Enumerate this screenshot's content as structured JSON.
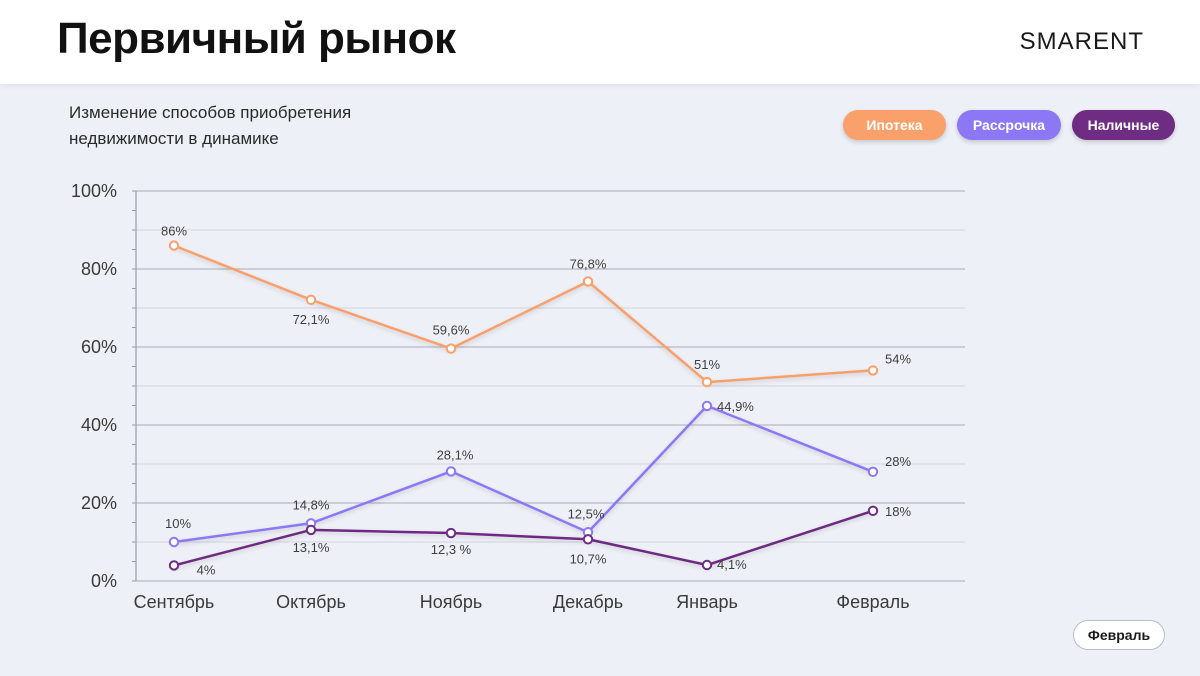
{
  "header": {
    "title": "Первичный рынок",
    "brand": "SMARENT"
  },
  "subtitle": "Изменение способов приобретения недвижимости в динамике",
  "month_button": "Февраль",
  "chart_data": {
    "type": "line",
    "categories": [
      "Сентябрь",
      "Октябрь",
      "Ноябрь",
      "Декабрь",
      "Январь",
      "Февраль"
    ],
    "ylim": [
      0,
      100
    ],
    "yticks": [
      "0%",
      "20%",
      "40%",
      "60%",
      "80%",
      "100%"
    ],
    "grid": true,
    "legend_position": "top-right",
    "series": [
      {
        "name": "Ипотека",
        "color": "#f9a06b",
        "values": [
          86,
          72.1,
          59.6,
          76.8,
          51,
          54
        ],
        "labels": [
          "86%",
          "72,1%",
          "59,6%",
          "76,8%",
          "51%",
          "54%"
        ]
      },
      {
        "name": "Рассрочка",
        "color": "#8c78f5",
        "values": [
          10,
          14.8,
          28.1,
          12.5,
          44.9,
          28
        ],
        "labels": [
          "10%",
          "14,8%",
          "28,1%",
          "12,5%",
          "44,9%",
          "28%"
        ]
      },
      {
        "name": "Наличные",
        "color": "#6e2c82",
        "values": [
          4,
          13.1,
          12.3,
          10.7,
          4.1,
          18
        ],
        "labels": [
          "4%",
          "13,1%",
          "12,3 %",
          "10,7%",
          "4,1%",
          "18%"
        ]
      }
    ]
  }
}
